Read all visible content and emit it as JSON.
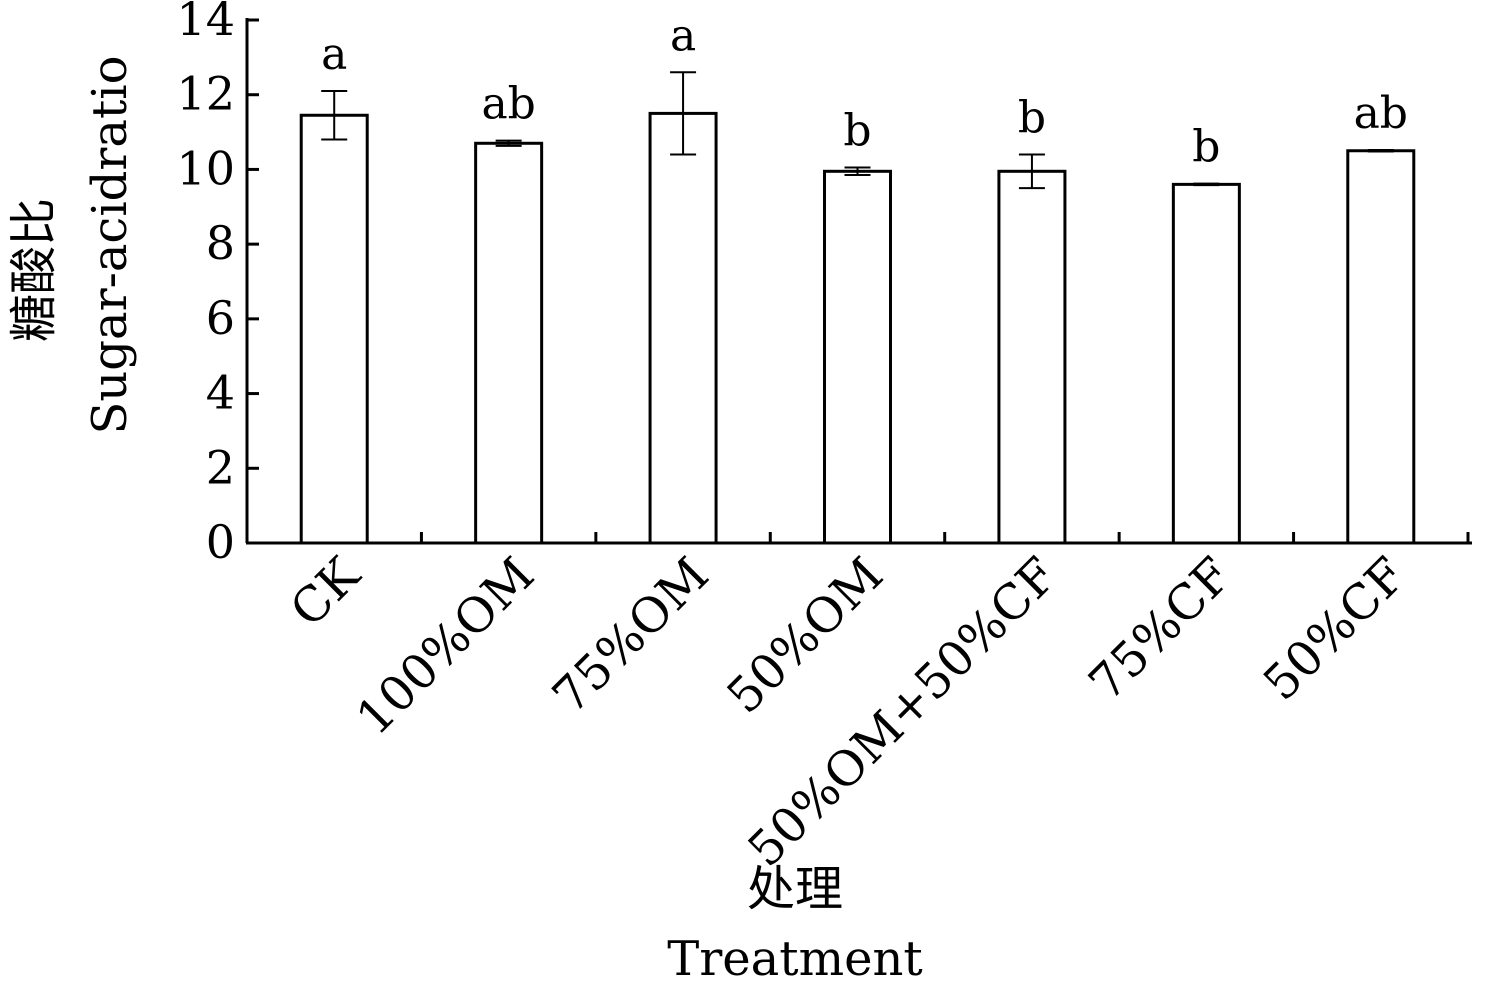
{
  "chart_data": {
    "type": "bar",
    "title": "",
    "xlabel_cn": "处理",
    "xlabel": "Treatment",
    "ylabel_cn": "糖酸比",
    "ylabel": "Sugar-acidratio",
    "ylim": [
      0,
      14
    ],
    "yticks": [
      0,
      2,
      4,
      6,
      8,
      10,
      12,
      14
    ],
    "grid": false,
    "legend": "none",
    "categories": [
      "CK",
      "100%OM",
      "75%OM",
      "50%OM",
      "50%OM+50%CF",
      "75%CF",
      "50%CF"
    ],
    "values": [
      11.45,
      10.7,
      11.5,
      9.95,
      9.95,
      9.6,
      10.5
    ],
    "errors": [
      0.65,
      0.07,
      1.1,
      0.1,
      0.45,
      0.02,
      0.02
    ],
    "significance": [
      "a",
      "ab",
      "a",
      "b",
      "b",
      "b",
      "ab"
    ],
    "bar_fill": "#ffffff",
    "bar_stroke": "#000000"
  }
}
